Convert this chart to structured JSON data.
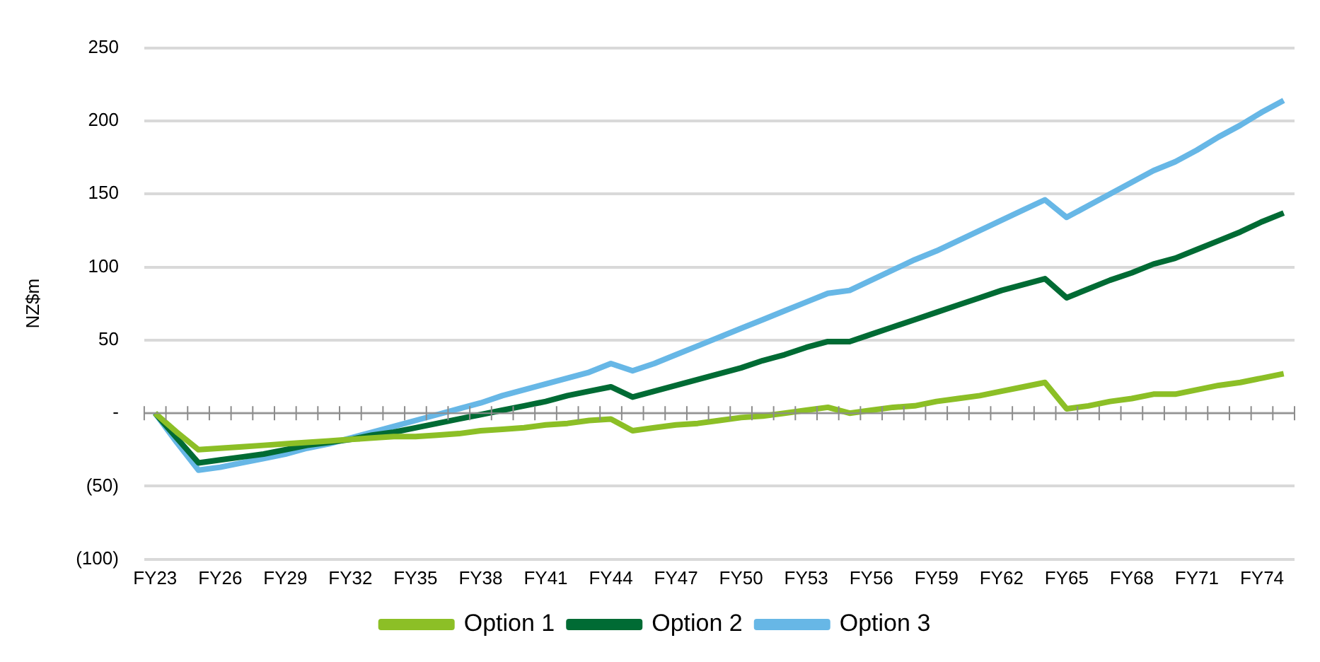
{
  "chart_data": {
    "type": "line",
    "ylabel": "NZ$m",
    "categories": [
      "FY23",
      null,
      null,
      "FY26",
      null,
      null,
      "FY29",
      null,
      null,
      "FY32",
      null,
      null,
      "FY35",
      null,
      null,
      "FY38",
      null,
      null,
      "FY41",
      null,
      null,
      "FY44",
      null,
      null,
      "FY47",
      null,
      null,
      "FY50",
      null,
      null,
      "FY53",
      null,
      null,
      "FY56",
      null,
      null,
      "FY59",
      null,
      null,
      "FY62",
      null,
      null,
      "FY65",
      null,
      null,
      "FY68",
      null,
      null,
      "FY71",
      null,
      null,
      "FY74",
      null
    ],
    "series": [
      {
        "name": "Option 1",
        "color": "#8cbf26",
        "values": [
          0,
          -13,
          -25,
          -24,
          -23,
          -22,
          -21,
          -20,
          -19,
          -18,
          -17,
          -16,
          -16,
          -15,
          -14,
          -12,
          -11,
          -10,
          -8,
          -7,
          -5,
          -4,
          -12,
          -10,
          -8,
          -7,
          -5,
          -3,
          -2,
          0,
          2,
          4,
          0,
          2,
          4,
          5,
          8,
          10,
          12,
          15,
          18,
          21,
          3,
          5,
          8,
          10,
          13,
          13,
          16,
          19,
          21,
          24,
          27
        ]
      },
      {
        "name": "Option 2",
        "color": "#006b34",
        "values": [
          0,
          -17,
          -34,
          -32,
          -30,
          -28,
          -25,
          -22,
          -20,
          -18,
          -15,
          -13,
          -10,
          -7,
          -4,
          -1,
          2,
          5,
          8,
          12,
          15,
          18,
          11,
          15,
          19,
          23,
          27,
          31,
          36,
          40,
          45,
          49,
          49,
          54,
          59,
          64,
          69,
          74,
          79,
          84,
          88,
          92,
          79,
          85,
          91,
          96,
          102,
          106,
          112,
          118,
          124,
          131,
          137
        ]
      },
      {
        "name": "Option 3",
        "color": "#67b7e6",
        "values": [
          0,
          -20,
          -39,
          -37,
          -34,
          -31,
          -28,
          -24,
          -21,
          -17,
          -13,
          -9,
          -5,
          -1,
          3,
          7,
          12,
          16,
          20,
          24,
          28,
          34,
          29,
          34,
          40,
          46,
          52,
          58,
          64,
          70,
          76,
          82,
          84,
          91,
          98,
          105,
          111,
          118,
          125,
          132,
          139,
          146,
          134,
          142,
          150,
          158,
          166,
          172,
          180,
          189,
          197,
          206,
          214
        ]
      }
    ],
    "ylim": [
      -100,
      250
    ],
    "yticks": [
      {
        "value": -100,
        "label": "(100)"
      },
      {
        "value": -50,
        "label": "(50)"
      },
      {
        "value": 0,
        "label": "-"
      },
      50,
      100,
      150,
      200,
      250
    ],
    "grid": "y",
    "legend": "bottom",
    "marker": "none",
    "line_style": "solid"
  }
}
